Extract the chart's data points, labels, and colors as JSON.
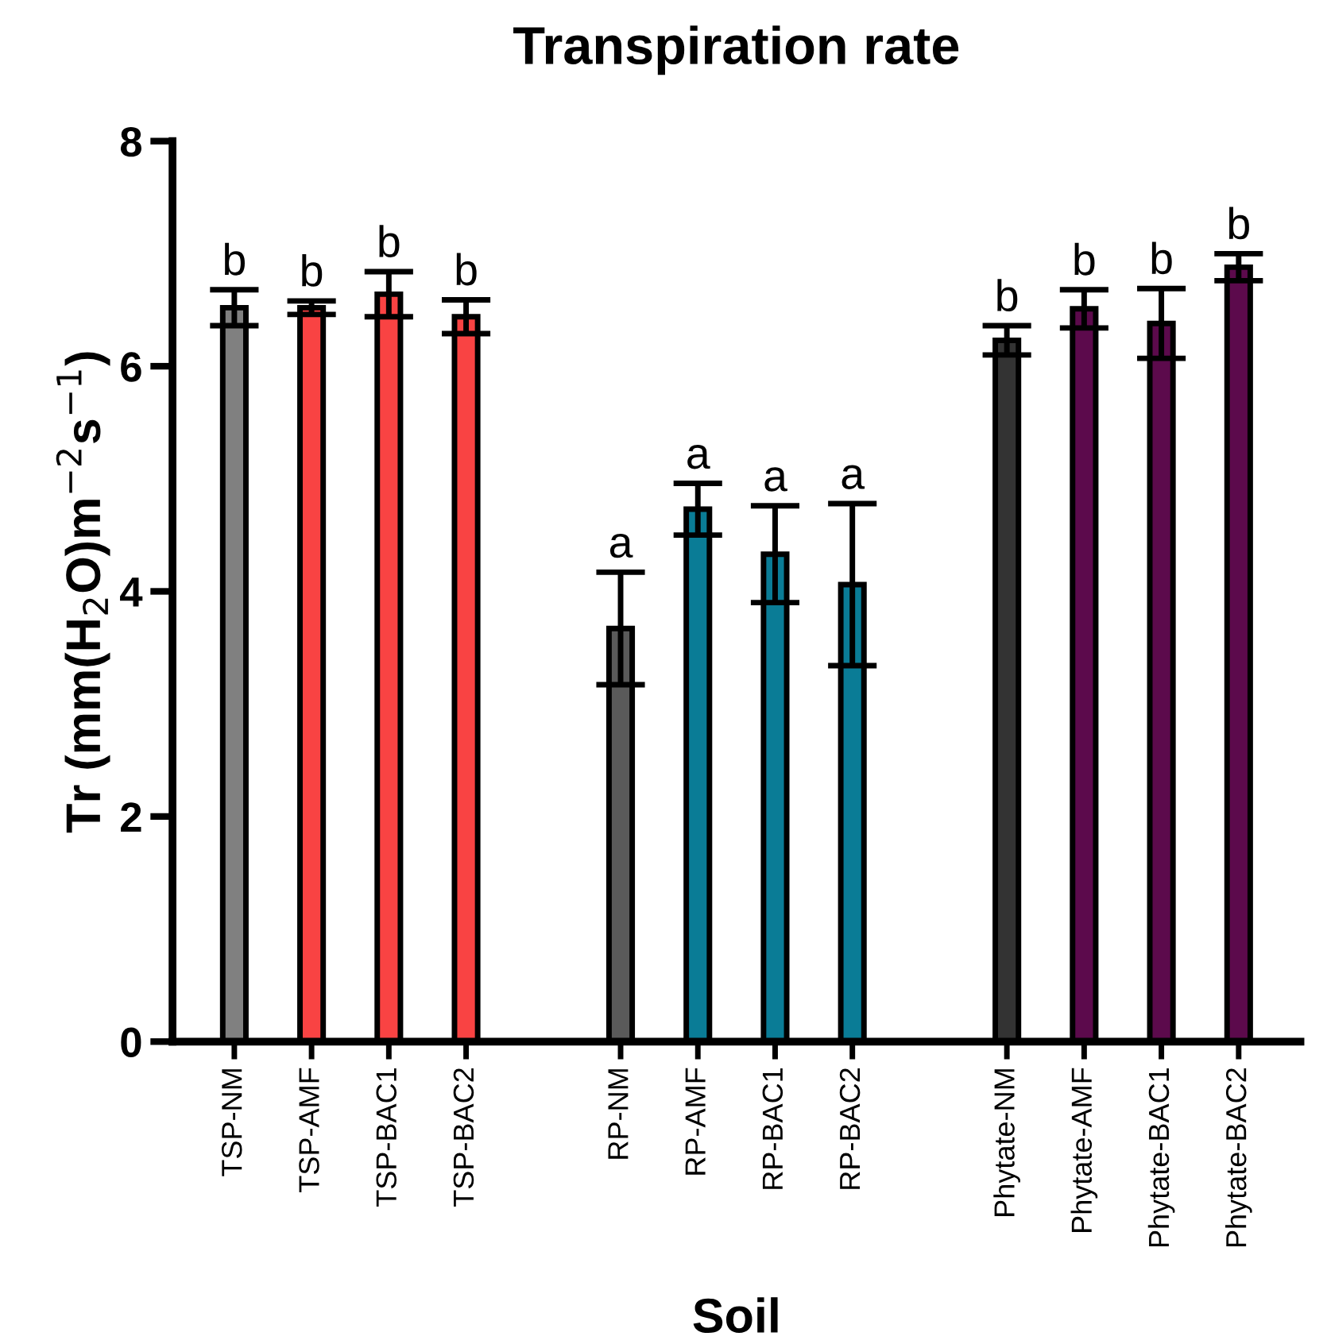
{
  "chart_data": {
    "type": "bar",
    "title": "Transpiration rate",
    "xlabel": "Soil",
    "ylabel": "Tr (mm(H$_{2}$O)m$^{−2}$s$^{−1}$)",
    "categories": [
      "TSP-NM",
      "TSP-AMF",
      "TSP-BAC1",
      "TSP-BAC2",
      null,
      "RP-NM",
      "RP-AMF",
      "RP-BAC1",
      "RP-BAC2",
      null,
      "Phytate-NM",
      "Phytate-AMF",
      "Phytate-BAC1",
      "Phytate-BAC2"
    ],
    "values": [
      6.52,
      6.52,
      6.64,
      6.44,
      null,
      3.67,
      4.73,
      4.33,
      4.06,
      null,
      6.23,
      6.51,
      6.38,
      6.88
    ],
    "errors": [
      0.16,
      0.06,
      0.2,
      0.15,
      null,
      0.5,
      0.23,
      0.43,
      0.72,
      null,
      0.13,
      0.17,
      0.31,
      0.12
    ],
    "colors": [
      "#808080",
      "#f94343",
      "#f94343",
      "#f94343",
      null,
      "#5a5a5a",
      "#0a7c96",
      "#0a7c96",
      "#0a7c96",
      null,
      "#333333",
      "#5c0a4c",
      "#5c0a4c",
      "#5c0a4c"
    ],
    "value_labels": [
      "b",
      "b",
      "b",
      "b",
      null,
      "a",
      "a",
      "a",
      "a",
      null,
      "b",
      "b",
      "b",
      "b"
    ],
    "ylim": [
      0,
      8
    ],
    "yticks": [
      0,
      2,
      4,
      6,
      8
    ],
    "grid": false,
    "legend": false
  }
}
